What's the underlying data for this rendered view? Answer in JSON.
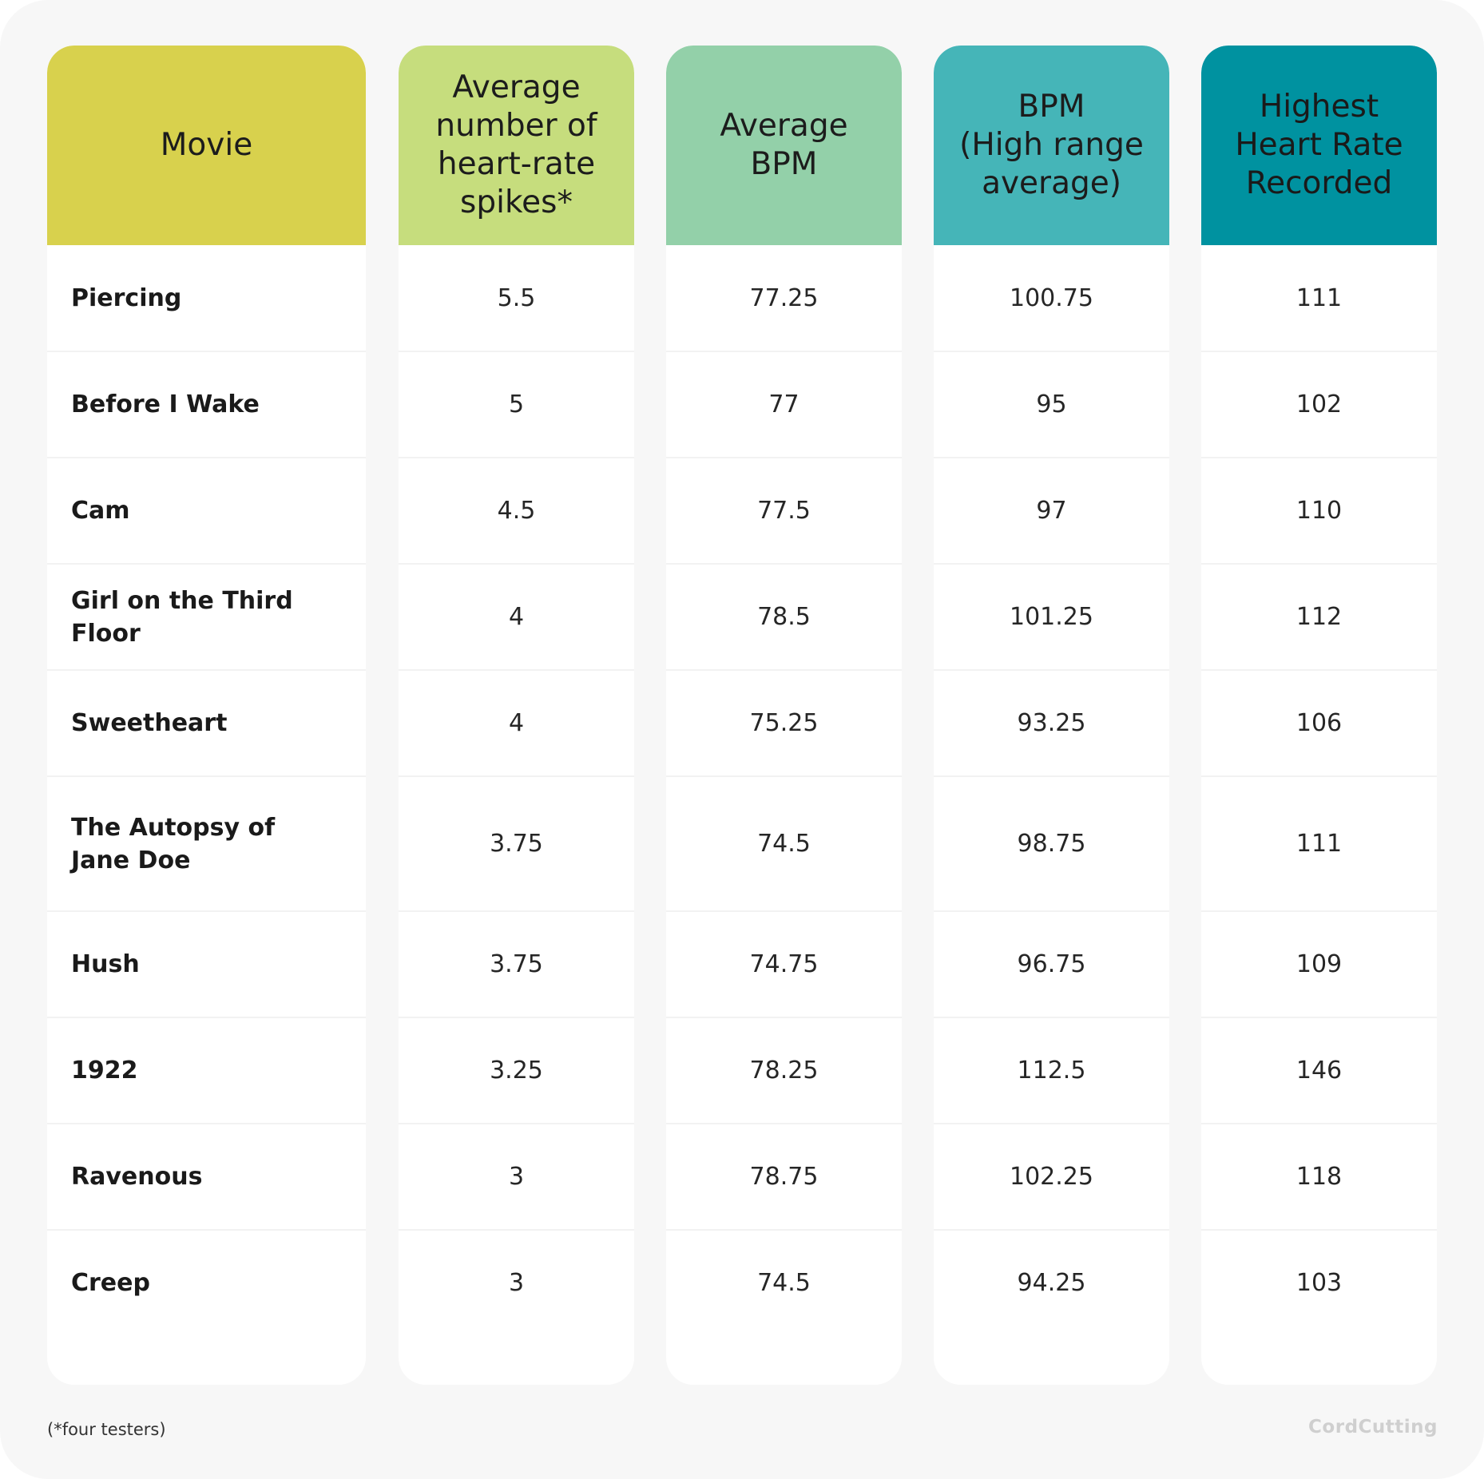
{
  "chart_data": {
    "type": "table",
    "colors": {
      "movie_header": "#d8d14d",
      "spikes_header": "#c6dd7d",
      "avg_bpm_header": "#93d0a9",
      "high_range_header": "#45b5b8",
      "highest_header": "#0092a0"
    },
    "columns": [
      "Movie",
      "Average number of heart-rate spikes*",
      "Average BPM",
      "BPM (High range average)",
      "Highest Heart Rate Recorded"
    ],
    "header_display": [
      "Movie",
      "Average\nnumber of\nheart-rate\nspikes*",
      "Average\nBPM",
      "BPM\n(High range\naverage)",
      "Highest\nHeart Rate\nRecorded"
    ],
    "rows": [
      {
        "movie": "Piercing",
        "spikes": "5.5",
        "avg_bpm": "77.25",
        "high_range": "100.75",
        "highest": "111"
      },
      {
        "movie": "Before I Wake",
        "spikes": "5",
        "avg_bpm": "77",
        "high_range": "95",
        "highest": "102"
      },
      {
        "movie": "Cam",
        "spikes": "4.5",
        "avg_bpm": "77.5",
        "high_range": "97",
        "highest": "110"
      },
      {
        "movie": "Girl on the Third Floor",
        "spikes": "4",
        "avg_bpm": "78.5",
        "high_range": "101.25",
        "highest": "112"
      },
      {
        "movie": "Sweetheart",
        "spikes": "4",
        "avg_bpm": "75.25",
        "high_range": "93.25",
        "highest": "106"
      },
      {
        "movie": "The Autopsy of\nJane Doe",
        "spikes": "3.75",
        "avg_bpm": "74.5",
        "high_range": "98.75",
        "highest": "111"
      },
      {
        "movie": "Hush",
        "spikes": "3.75",
        "avg_bpm": "74.75",
        "high_range": "96.75",
        "highest": "109"
      },
      {
        "movie": "1922",
        "spikes": "3.25",
        "avg_bpm": "78.25",
        "high_range": "112.5",
        "highest": "146"
      },
      {
        "movie": "Ravenous",
        "spikes": "3",
        "avg_bpm": "78.75",
        "high_range": "102.25",
        "highest": "118"
      },
      {
        "movie": "Creep",
        "spikes": "3",
        "avg_bpm": "74.5",
        "high_range": "94.25",
        "highest": "103"
      }
    ],
    "footnote": "(*four testers)",
    "logo_text": "CordCutting"
  }
}
